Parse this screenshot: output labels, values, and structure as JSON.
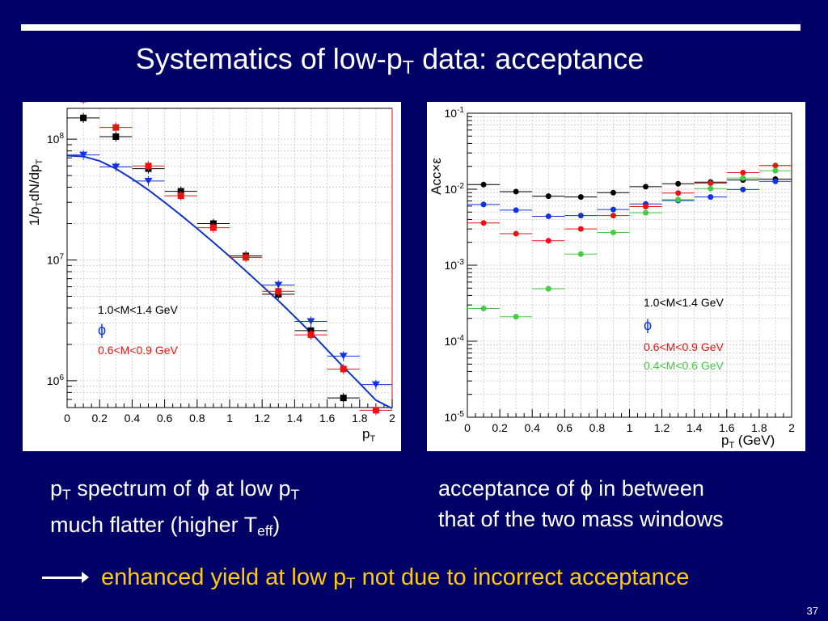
{
  "slide": {
    "title_a": "Systematics of low-p",
    "title_sub": "T",
    "title_b": " data: acceptance",
    "left_caption": {
      "l1_a": "p",
      "l1_sub": "T",
      "l1_b": " spectrum of ",
      "l1_phi": "ϕ",
      "l1_c": " at low p",
      "l1_sub2": "T",
      "l2_a": "much flatter (higher T",
      "l2_sub": "eff",
      "l2_b": ")"
    },
    "right_caption": {
      "l1_a": "acceptance of ",
      "l1_phi": "ϕ",
      "l1_b": " in between",
      "l2": "that of the two mass windows"
    },
    "conclusion": {
      "a": "enhanced yield at low p",
      "sub": "T",
      "b": " not due to incorrect acceptance"
    },
    "page_number": "37"
  },
  "colors": {
    "background": "#000066",
    "conclusion": "#ffcc00",
    "black": "#000000",
    "red": "#ee1111",
    "blue": "#1133dd",
    "green": "#44cc44",
    "fit": "#1133cc"
  },
  "chart_data": [
    {
      "type": "scatter",
      "log_y": true,
      "xlim": [
        0,
        2
      ],
      "ylim": [
        600000,
        180000000
      ],
      "x_ticks": [
        "0",
        "0.2",
        "0.4",
        "0.6",
        "0.8",
        "1",
        "1.2",
        "1.4",
        "1.6",
        "1.8",
        "2"
      ],
      "y_ticks": [
        {
          "value": 1000000,
          "base": "10",
          "exp": "6"
        },
        {
          "value": 10000000,
          "base": "10",
          "exp": "7"
        },
        {
          "value": 100000000,
          "base": "10",
          "exp": "8"
        }
      ],
      "ylabel_parts": [
        "1/p",
        "T",
        "dN/dp",
        "T"
      ],
      "xlabel_parts": [
        "p",
        "T"
      ],
      "legend": {
        "black_label": "1.0<M<1.4 GeV",
        "phi_label": "ϕ",
        "red_label": "0.6<M<0.9 GeV"
      },
      "series": [
        {
          "key": "black",
          "marker": "square",
          "x": [
            0.1,
            0.3,
            0.5,
            0.7,
            0.9,
            1.1,
            1.3,
            1.5,
            1.7
          ],
          "y": [
            150000000,
            105000000,
            57000000,
            37000000,
            20000000,
            10800000,
            5200000,
            2600000,
            720000
          ]
        },
        {
          "key": "red",
          "marker": "square",
          "x": [
            0.1,
            0.3,
            0.5,
            0.7,
            0.9,
            1.1,
            1.3,
            1.5,
            1.7,
            1.9
          ],
          "y": [
            215000000,
            125000000,
            60000000,
            34000000,
            18500000,
            10500000,
            5500000,
            2400000,
            1250000,
            570000
          ]
        },
        {
          "key": "blue",
          "marker": "triangle-down",
          "x": [
            0.1,
            0.3,
            0.5,
            1.3,
            1.5,
            1.7,
            1.9
          ],
          "y": [
            74000000,
            59000000,
            45000000,
            6200000,
            3100000,
            1600000,
            930000
          ]
        }
      ],
      "fit": {
        "x": [
          0,
          0.1,
          0.2,
          0.3,
          0.4,
          0.5,
          0.6,
          0.7,
          0.8,
          0.9,
          1.0,
          1.1,
          1.2,
          1.3,
          1.4,
          1.5,
          1.6,
          1.7,
          1.8,
          1.9,
          2.0
        ],
        "y": [
          73000000,
          72000000,
          66000000,
          57000000,
          47000000,
          38000000,
          30000000,
          23500000,
          18200000,
          14000000,
          10700000,
          8100000,
          6100000,
          4600000,
          3400000,
          2500000,
          1800000,
          1300000,
          950000,
          690000,
          590000
        ]
      }
    },
    {
      "type": "scatter",
      "log_y": true,
      "xlim": [
        0,
        2
      ],
      "ylim": [
        1e-05,
        0.1
      ],
      "x_ticks": [
        "0",
        "0.2",
        "0.4",
        "0.6",
        "0.8",
        "1",
        "1.2",
        "1.4",
        "1.6",
        "1.8",
        "2"
      ],
      "y_ticks": [
        {
          "value": 0.1,
          "base": "10",
          "exp": "-1"
        },
        {
          "value": 0.01,
          "base": "10",
          "exp": "-2"
        },
        {
          "value": 0.001,
          "base": "10",
          "exp": "-3"
        },
        {
          "value": 0.0001,
          "base": "10",
          "exp": "-4"
        },
        {
          "value": 1e-05,
          "base": "10",
          "exp": "-5"
        }
      ],
      "ylabel": "Acc×ε",
      "xlabel_parts": [
        "p",
        "T",
        " (GeV)"
      ],
      "legend": {
        "black_label": "1.0<M<1.4 GeV",
        "phi_label": "ϕ",
        "red_label": "0.6<M<0.9 GeV",
        "green_label": "0.4<M<0.6 GeV"
      },
      "series": [
        {
          "key": "black",
          "marker": "circle",
          "x": [
            0.1,
            0.3,
            0.5,
            0.7,
            0.9,
            1.1,
            1.3,
            1.5,
            1.7,
            1.9
          ],
          "y": [
            0.0115,
            0.0093,
            0.0081,
            0.0079,
            0.009,
            0.0108,
            0.0118,
            0.0124,
            0.0132,
            0.0136
          ]
        },
        {
          "key": "blue",
          "marker": "circle",
          "x": [
            0.1,
            0.3,
            0.5,
            0.7,
            0.9,
            1.1,
            1.3,
            1.5,
            1.7,
            1.9
          ],
          "y": [
            0.0063,
            0.0053,
            0.0044,
            0.0045,
            0.0054,
            0.0064,
            0.0071,
            0.0079,
            0.0099,
            0.0127
          ]
        },
        {
          "key": "red",
          "marker": "circle",
          "x": [
            0.1,
            0.3,
            0.5,
            0.7,
            0.9,
            1.1,
            1.3,
            1.5,
            1.7,
            1.9
          ],
          "y": [
            0.0036,
            0.0026,
            0.0021,
            0.003,
            0.0045,
            0.0059,
            0.0089,
            0.012,
            0.0165,
            0.0205
          ]
        },
        {
          "key": "green",
          "marker": "circle",
          "x": [
            0.1,
            0.3,
            0.5,
            0.7,
            0.9,
            1.1,
            1.3,
            1.5,
            1.7,
            1.9
          ],
          "y": [
            0.00027,
            0.00021,
            0.00049,
            0.0014,
            0.0027,
            0.0049,
            0.0073,
            0.0102,
            0.014,
            0.0175
          ]
        }
      ]
    }
  ]
}
